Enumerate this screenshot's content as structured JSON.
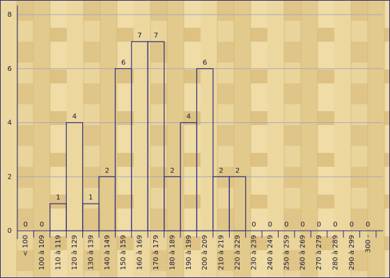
{
  "chart_data": {
    "type": "bar",
    "categories": [
      "< 100",
      "100 à 109",
      "110 à 119",
      "120 à 129",
      "130 à 139",
      "140 à 149",
      "150 à 159",
      "160 à 169",
      "170 à 179",
      "180 à 189",
      "190 à 199",
      "200 à 209",
      "210 à 219",
      "220 à 229",
      "230 à 239",
      "240 à 249",
      "250 à 259",
      "260 à 269",
      "270 à 279",
      "280 à 289",
      "290 à 299",
      "300 -"
    ],
    "values": [
      0,
      0,
      1,
      4,
      1,
      2,
      6,
      7,
      7,
      2,
      4,
      6,
      2,
      2,
      0,
      0,
      0,
      0,
      0,
      0,
      0,
      0
    ],
    "color": "#2e2e7a",
    "ylim": [
      0,
      8
    ],
    "yticks": [
      0,
      2,
      4,
      6,
      8
    ],
    "grid": true
  }
}
